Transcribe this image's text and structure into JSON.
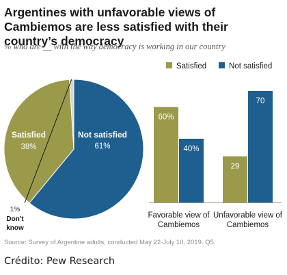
{
  "header": {
    "title": "Argentines with unfavorable views of Cambiemos are less satisfied with their country’s democracy",
    "subtitle": "% who are __ with the way democracy is working in our country"
  },
  "footer": {
    "source": "Source: Survey of Argentine adults, conducted May 22-July 10, 2019. Q5.",
    "credit": "Crédito: Pew Research"
  },
  "colors": {
    "satisfied": "#9a9a4a",
    "not_satisfied": "#1f5f8f",
    "dont_know": "#d9d6c6"
  },
  "chart_data": [
    {
      "type": "pie",
      "slices": [
        {
          "name": "Not satisfied",
          "value": 61,
          "label": "61%"
        },
        {
          "name": "Satisfied",
          "value": 38,
          "label": "38%"
        },
        {
          "name": "Don't know",
          "value": 1,
          "label": "1%"
        }
      ],
      "annotations": {
        "dont_know_line1": "Don't",
        "dont_know_line2": "know"
      }
    },
    {
      "type": "bar",
      "categories": [
        [
          "Favorable view of",
          "Cambiemos"
        ],
        [
          "Unfavorable view of",
          "Cambiemos"
        ]
      ],
      "series": [
        {
          "name": "Satisfied",
          "values": [
            60,
            29
          ],
          "labels": [
            "60%",
            "29"
          ]
        },
        {
          "name": "Not satisfied",
          "values": [
            40,
            70
          ],
          "labels": [
            "40%",
            "70"
          ]
        }
      ],
      "legend": "top",
      "ylim": [
        0,
        70
      ]
    }
  ]
}
